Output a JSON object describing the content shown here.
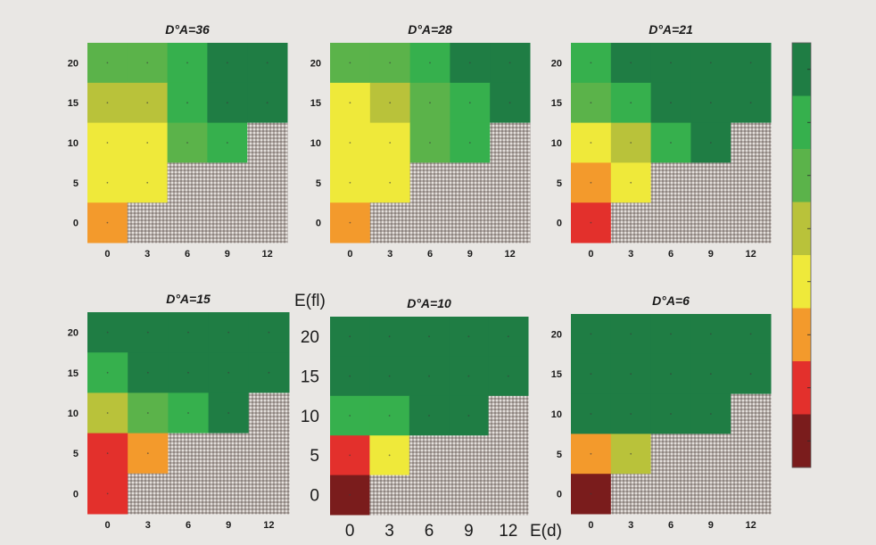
{
  "figure": {
    "background": "#e9e7e4",
    "hatch_color": "#b3aba6",
    "scale_colors": [
      "#7a1c1c",
      "#e3302c",
      "#f39a2c",
      "#efe93a",
      "#b9c23a",
      "#5bb34a",
      "#36b04d",
      "#1f7d44"
    ]
  },
  "chart_data": [
    {
      "type": "heatmap",
      "title": "D°A=36",
      "x_ticks": [
        "0",
        "3",
        "6",
        "9",
        "12"
      ],
      "y_ticks": [
        "20",
        "15",
        "10",
        "5",
        "0"
      ],
      "grid": [
        [
          5,
          5,
          6,
          7,
          7
        ],
        [
          4,
          4,
          6,
          7,
          7
        ],
        [
          3,
          3,
          5,
          6,
          -1
        ],
        [
          3,
          3,
          -1,
          -1,
          -1
        ],
        [
          2,
          -1,
          -1,
          -1,
          -1
        ]
      ]
    },
    {
      "type": "heatmap",
      "title": "D°A=28",
      "x_ticks": [
        "0",
        "3",
        "6",
        "9",
        "12"
      ],
      "y_ticks": [
        "20",
        "15",
        "10",
        "5",
        "0"
      ],
      "grid": [
        [
          5,
          5,
          6,
          7,
          7
        ],
        [
          3,
          4,
          5,
          6,
          7
        ],
        [
          3,
          3,
          5,
          6,
          -1
        ],
        [
          3,
          3,
          -1,
          -1,
          -1
        ],
        [
          2,
          -1,
          -1,
          -1,
          -1
        ]
      ]
    },
    {
      "type": "heatmap",
      "title": "D°A=21",
      "x_ticks": [
        "0",
        "3",
        "6",
        "9",
        "12"
      ],
      "y_ticks": [
        "20",
        "15",
        "10",
        "5",
        "0"
      ],
      "grid": [
        [
          6,
          7,
          7,
          7,
          7
        ],
        [
          5,
          6,
          7,
          7,
          7
        ],
        [
          3,
          4,
          6,
          7,
          -1
        ],
        [
          2,
          3,
          -1,
          -1,
          -1
        ],
        [
          1,
          -1,
          -1,
          -1,
          -1
        ]
      ]
    },
    {
      "type": "heatmap",
      "title": "D°A=15",
      "x_ticks": [
        "0",
        "3",
        "6",
        "9",
        "12"
      ],
      "y_ticks": [
        "20",
        "15",
        "10",
        "5",
        "0"
      ],
      "grid": [
        [
          7,
          7,
          7,
          7,
          7
        ],
        [
          6,
          7,
          7,
          7,
          7
        ],
        [
          4,
          5,
          6,
          7,
          -1
        ],
        [
          1,
          2,
          -1,
          -1,
          -1
        ],
        [
          1,
          -1,
          -1,
          -1,
          -1
        ]
      ]
    },
    {
      "type": "heatmap",
      "title": "D°A=10",
      "xlabel": "E(d)",
      "ylabel": "E(fl)",
      "x_ticks": [
        "0",
        "3",
        "6",
        "9",
        "12"
      ],
      "y_ticks": [
        "20",
        "15",
        "10",
        "5",
        "0"
      ],
      "grid": [
        [
          7,
          7,
          7,
          7,
          7
        ],
        [
          7,
          7,
          7,
          7,
          7
        ],
        [
          6,
          6,
          7,
          7,
          -1
        ],
        [
          1,
          3,
          -1,
          -1,
          -1
        ],
        [
          0,
          -1,
          -1,
          -1,
          -1
        ]
      ]
    },
    {
      "type": "heatmap",
      "title": "D°A=6",
      "x_ticks": [
        "0",
        "3",
        "6",
        "9",
        "12"
      ],
      "y_ticks": [
        "20",
        "15",
        "10",
        "5",
        "0"
      ],
      "grid": [
        [
          7,
          7,
          7,
          7,
          7
        ],
        [
          7,
          7,
          7,
          7,
          7
        ],
        [
          7,
          7,
          7,
          7,
          -1
        ],
        [
          2,
          4,
          -1,
          -1,
          -1
        ],
        [
          0,
          -1,
          -1,
          -1,
          -1
        ]
      ]
    }
  ]
}
